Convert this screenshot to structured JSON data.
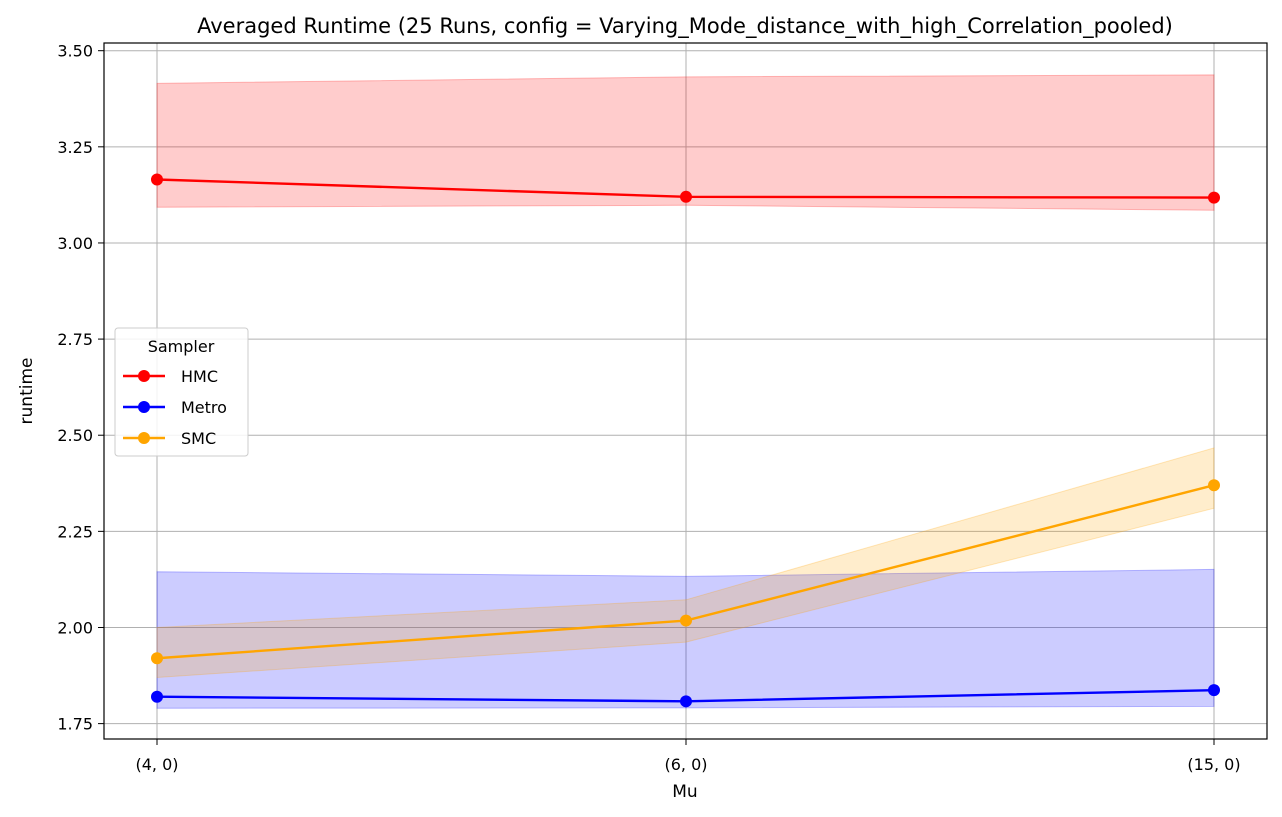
{
  "chart_data": {
    "type": "line",
    "title": "Averaged Runtime (25 Runs, config = Varying_Mode_distance_with_high_Correlation_pooled)",
    "xlabel": "Mu",
    "ylabel": "runtime",
    "categories": [
      "(4, 0)",
      "(6, 0)",
      "(15, 0)"
    ],
    "ylim": [
      1.71,
      3.52
    ],
    "yticks": [
      "1.75",
      "2.00",
      "2.25",
      "2.50",
      "2.75",
      "3.00",
      "3.25",
      "3.50"
    ],
    "grid": true,
    "legend": {
      "title": "Sampler",
      "placement": "center-left"
    },
    "series": [
      {
        "name": "HMC",
        "color": "#ff0000",
        "band_color": "#ff0000",
        "values": [
          3.165,
          3.12,
          3.118
        ],
        "lower": [
          3.093,
          3.098,
          3.085
        ],
        "upper": [
          3.415,
          3.432,
          3.437
        ]
      },
      {
        "name": "Metro",
        "color": "#0000ff",
        "band_color": "#0000ff",
        "values": [
          1.82,
          1.808,
          1.837
        ],
        "lower": [
          1.79,
          1.791,
          1.795
        ],
        "upper": [
          2.145,
          2.133,
          2.151
        ]
      },
      {
        "name": "SMC",
        "color": "#ffa500",
        "band_color": "#ffa500",
        "values": [
          1.92,
          2.018,
          2.37
        ],
        "lower": [
          1.87,
          1.962,
          2.31
        ],
        "upper": [
          2.0,
          2.072,
          2.467
        ]
      }
    ]
  }
}
